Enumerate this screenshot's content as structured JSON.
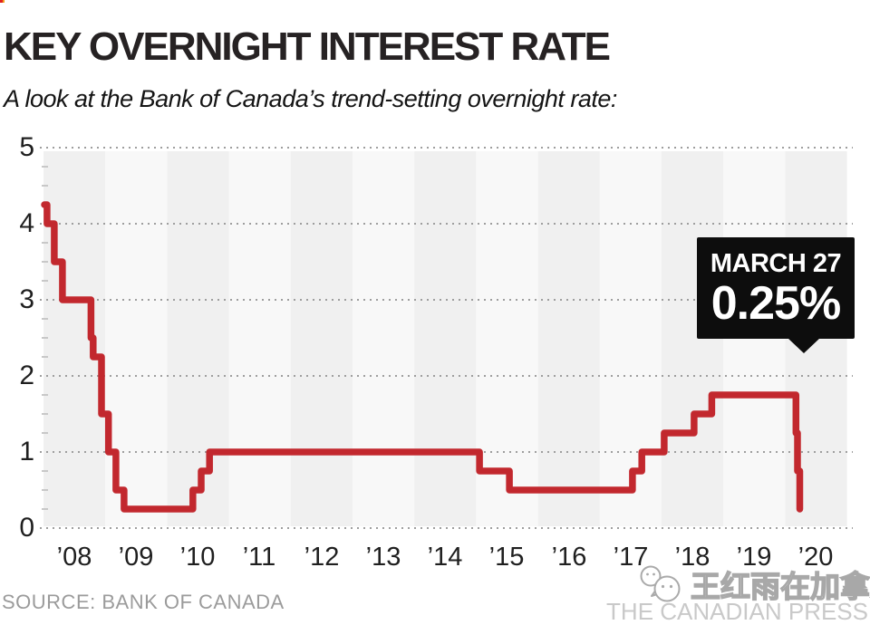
{
  "header": {
    "title": "KEY OVERNIGHT INTEREST RATE",
    "subtitle": "A look at the Bank of Canada’s trend-setting overnight rate:"
  },
  "footer": {
    "source": "SOURCE: BANK OF CANADA",
    "credit": "THE CANADIAN PRESS",
    "watermark": "王红雨在加拿大"
  },
  "chart_data": {
    "type": "line",
    "subtype": "step",
    "title": "KEY OVERNIGHT INTEREST RATE",
    "xlabel": "",
    "ylabel": "",
    "ylim": [
      0,
      5
    ],
    "x_range_years": [
      2008,
      2021
    ],
    "grid": "dotted horizontal gridlines at each integer; minor ticks every 0.25 on left edge; alternating vertical year bands",
    "legend_position": "none",
    "y_tick_labels": [
      "5",
      "4",
      "3",
      "2",
      "1",
      "0"
    ],
    "x_tick_labels": [
      "’08",
      "’09",
      "’10",
      "’11",
      "’12",
      "’13",
      "’14",
      "’15",
      "’16",
      "’17",
      "’18",
      "’19",
      "’20"
    ],
    "series": [
      {
        "name": "Bank of Canada key overnight rate (%)",
        "color": "#c2282e",
        "points": [
          [
            "2008-01-01",
            4.25
          ],
          [
            "2008-01-22",
            4.0
          ],
          [
            "2008-03-04",
            3.5
          ],
          [
            "2008-04-22",
            3.0
          ],
          [
            "2008-10-08",
            2.5
          ],
          [
            "2008-10-21",
            2.25
          ],
          [
            "2008-12-09",
            1.5
          ],
          [
            "2009-01-20",
            1.0
          ],
          [
            "2009-03-03",
            0.5
          ],
          [
            "2009-04-21",
            0.25
          ],
          [
            "2010-06-01",
            0.5
          ],
          [
            "2010-07-20",
            0.75
          ],
          [
            "2010-09-08",
            1.0
          ],
          [
            "2015-01-21",
            0.75
          ],
          [
            "2015-07-15",
            0.5
          ],
          [
            "2017-07-12",
            0.75
          ],
          [
            "2017-09-06",
            1.0
          ],
          [
            "2018-01-17",
            1.25
          ],
          [
            "2018-07-11",
            1.5
          ],
          [
            "2018-10-24",
            1.75
          ],
          [
            "2020-03-04",
            1.25
          ],
          [
            "2020-03-13",
            0.75
          ],
          [
            "2020-03-27",
            0.25
          ]
        ]
      }
    ],
    "annotation": {
      "label": "MARCH 27",
      "value": "0.25%",
      "points_to": [
        "2020-03-27",
        0.25
      ]
    },
    "style": {
      "line_color": "#c2282e",
      "band_dark": "#f0f0f0",
      "band_light": "#f8f8f8",
      "grid_dot_color": "#9e9e9e",
      "minor_tick_color": "#c8c8c8",
      "callout_bg": "#0d0d0d",
      "callout_text": "#ffffff"
    }
  }
}
